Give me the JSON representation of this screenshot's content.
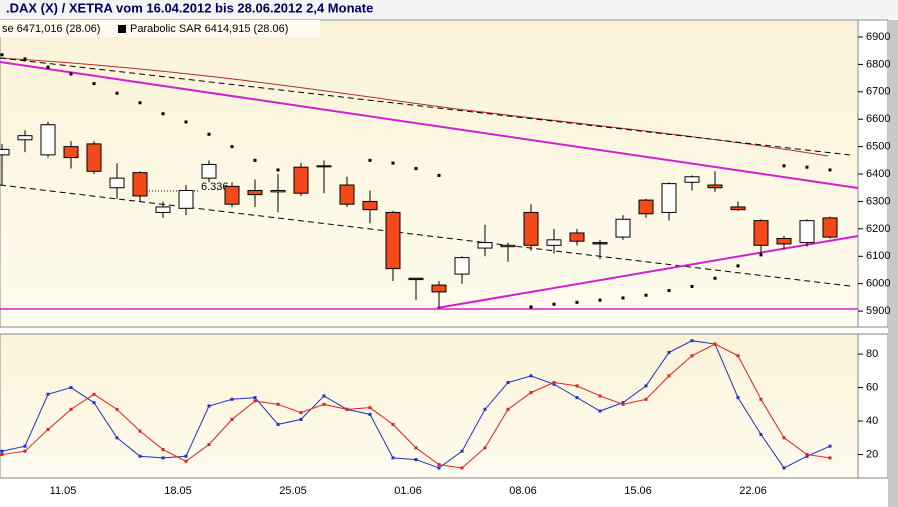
{
  "chart_data": [
    {
      "type": "candlestick",
      "title": ".DAX (X) / XETRA vom 16.04.2012 bis 28.06.2012 2,4 Monate",
      "legend": [
        "se 6471,016 (28.06)",
        "Parabolic SAR 6414,915 (28.06)"
      ],
      "annotation": "6.336",
      "up_color": "#ffffff",
      "down_color": "#f24a1a",
      "sar_color": "#000000",
      "open": [
        6470,
        6525,
        6470,
        6500,
        6510,
        6350,
        6405,
        6260,
        6275,
        6385,
        6355,
        6340,
        6335,
        6425,
        6430,
        6360,
        6300,
        6260,
        6020,
        5995,
        6035,
        6130,
        6135,
        6260,
        6140,
        6185,
        6150,
        6170,
        6305,
        6260,
        6370,
        6360,
        6280,
        6230,
        6165,
        6150,
        6240
      ],
      "high": [
        6510,
        6560,
        6590,
        6520,
        6520,
        6440,
        6410,
        6300,
        6360,
        6450,
        6370,
        6380,
        6400,
        6440,
        6450,
        6390,
        6340,
        6265,
        6020,
        6010,
        6100,
        6215,
        6150,
        6290,
        6200,
        6200,
        6160,
        6250,
        6310,
        6370,
        6395,
        6410,
        6300,
        6235,
        6175,
        6235,
        6245
      ],
      "low": [
        6360,
        6480,
        6460,
        6420,
        6400,
        6310,
        6300,
        6240,
        6250,
        6370,
        6280,
        6280,
        6260,
        6320,
        6330,
        6280,
        6220,
        6010,
        5940,
        5910,
        6000,
        6100,
        6080,
        6120,
        6110,
        6140,
        6090,
        6160,
        6240,
        6230,
        6340,
        6335,
        6265,
        6110,
        6125,
        6135,
        6165
      ],
      "close": [
        6490,
        6540,
        6580,
        6460,
        6410,
        6385,
        6320,
        6280,
        6340,
        6435,
        6290,
        6325,
        6340,
        6330,
        6430,
        6290,
        6270,
        6055,
        6015,
        5970,
        6095,
        6150,
        6140,
        6140,
        6160,
        6155,
        6145,
        6235,
        6255,
        6365,
        6390,
        6350,
        6270,
        6140,
        6145,
        6230,
        6170
      ],
      "sar": [
        6835,
        6820,
        6790,
        6765,
        6730,
        6695,
        6660,
        6620,
        6590,
        6545,
        6500,
        6450,
        6415,
        null,
        null,
        null,
        6450,
        6440,
        6420,
        6395,
        null,
        null,
        null,
        5915,
        5925,
        5932,
        5940,
        5948,
        5958,
        5975,
        5990,
        6020,
        6065,
        6105,
        6430,
        6425,
        6415
      ],
      "ylim": [
        5842,
        6962
      ],
      "yticks": [
        5900,
        6000,
        6100,
        6200,
        6300,
        6400,
        6500,
        6600,
        6700,
        6800,
        6900
      ]
    },
    {
      "type": "line",
      "categories": [
        null,
        null,
        null,
        "11.05",
        null,
        null,
        null,
        null,
        "18.05",
        null,
        null,
        null,
        null,
        "25.05",
        null,
        null,
        null,
        null,
        "01.06",
        null,
        null,
        null,
        null,
        "08.06",
        null,
        null,
        null,
        null,
        "15.06",
        null,
        null,
        null,
        null,
        "22.06",
        null,
        null,
        null
      ],
      "series": [
        {
          "color": "#2030c0",
          "values": [
            22,
            25,
            56,
            60,
            51,
            30,
            19,
            18,
            19,
            49,
            53,
            54,
            38,
            41,
            55,
            47,
            44,
            18,
            17,
            12,
            22,
            47,
            63,
            67,
            62,
            54,
            46,
            51,
            61,
            81,
            88,
            86,
            54,
            32,
            12,
            19,
            25
          ]
        },
        {
          "color": "#e02020",
          "values": [
            20,
            22,
            35,
            47,
            56,
            47,
            34,
            23,
            16,
            26,
            41,
            52,
            50,
            45,
            50,
            47,
            48,
            38,
            24,
            14,
            12,
            24,
            47,
            57,
            63,
            61,
            55,
            50,
            53,
            67,
            79,
            86,
            79,
            53,
            30,
            20,
            18
          ]
        }
      ],
      "ylim": [
        6,
        92
      ],
      "yticks": [
        20,
        40,
        60,
        80
      ]
    }
  ]
}
